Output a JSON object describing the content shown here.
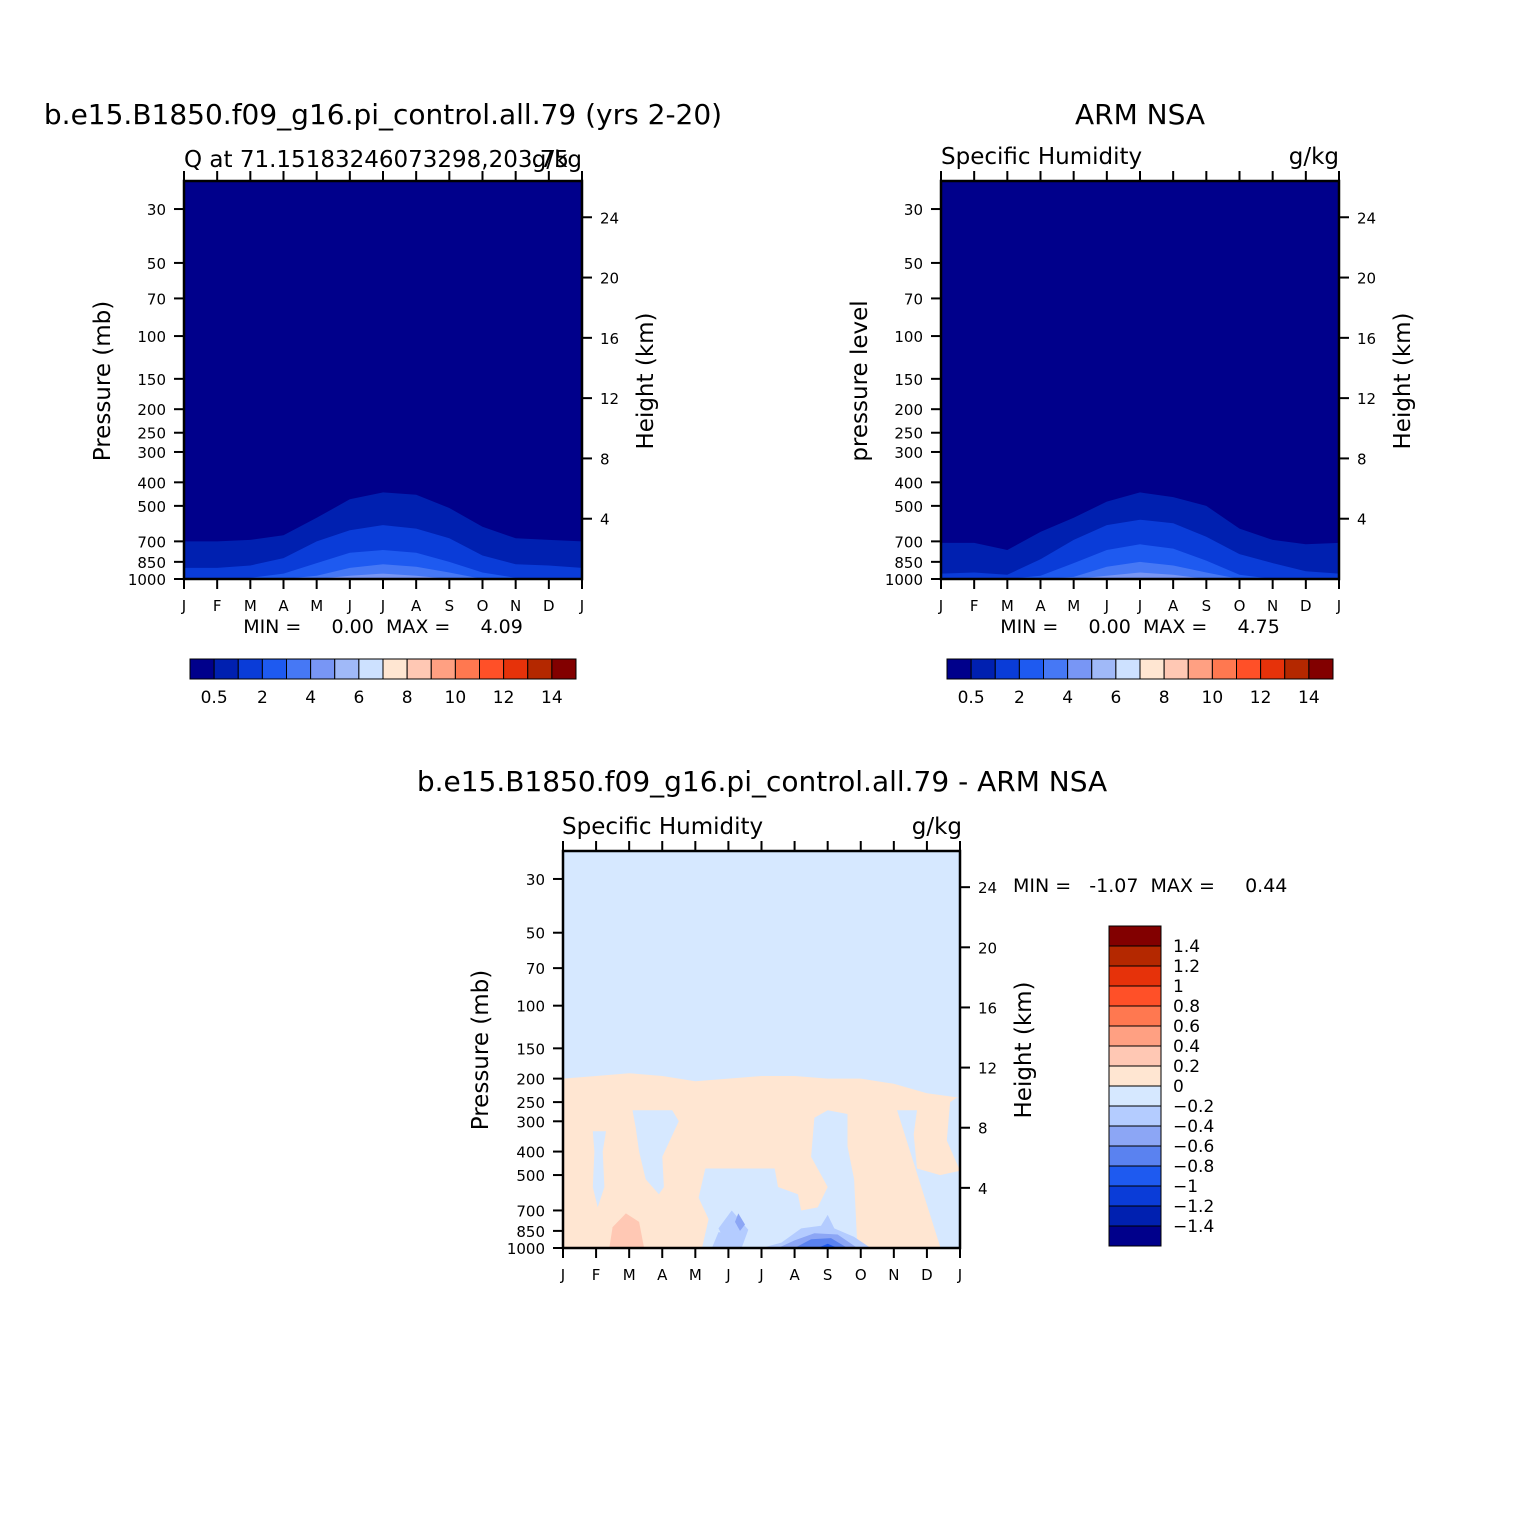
{
  "chart_data": [
    {
      "type": "heatmap",
      "main_title": "b.e15.B1850.f09_g16.pi_control.all.79 (yrs 2-20)",
      "left_subtitle": "Q at 71.15183246073298,203.75",
      "right_subtitle": "g/kg",
      "ylabel": "Pressure (mb)",
      "ylabel_right": "Height (km)",
      "x": [
        "J",
        "F",
        "M",
        "A",
        "M",
        "J",
        "J",
        "A",
        "S",
        "O",
        "N",
        "D",
        "J"
      ],
      "y_ticks": [
        "30",
        "50",
        "70",
        "100",
        "150",
        "200",
        "250",
        "300",
        "400",
        "500",
        "700",
        "850",
        "1000"
      ],
      "y_ticks_right": [
        "24",
        "20",
        "16",
        "12",
        "8",
        "4"
      ],
      "stats": "MIN =     0.00  MAX =     4.09",
      "colorbar_labels": [
        "0.5",
        "2",
        "4",
        "6",
        "8",
        "10",
        "12",
        "14"
      ],
      "contour_top_hpa": [
        [
          700,
          700,
          690,
          660,
          560,
          470,
          440,
          450,
          510,
          610,
          680,
          690,
          700
        ],
        [
          900,
          900,
          880,
          820,
          700,
          630,
          600,
          620,
          680,
          800,
          870,
          880,
          900
        ],
        [
          1000,
          1000,
          990,
          950,
          860,
          780,
          760,
          780,
          850,
          940,
          990,
          1000,
          1000
        ],
        [
          1000,
          1000,
          1000,
          1000,
          970,
          900,
          870,
          890,
          940,
          1000,
          1000,
          1000,
          1000
        ],
        [
          1000,
          1000,
          1000,
          1000,
          1000,
          970,
          950,
          970,
          1000,
          1000,
          1000,
          1000,
          1000
        ],
        [
          1000,
          1000,
          1000,
          1000,
          1000,
          1000,
          995,
          1000,
          1000,
          1000,
          1000,
          1000,
          1000
        ]
      ]
    },
    {
      "type": "heatmap",
      "main_title": "ARM NSA",
      "left_subtitle": "Specific Humidity",
      "right_subtitle": "g/kg",
      "ylabel": "pressure level",
      "ylabel_right": "Height (km)",
      "x": [
        "J",
        "F",
        "M",
        "A",
        "M",
        "J",
        "J",
        "A",
        "S",
        "O",
        "N",
        "D",
        "J"
      ],
      "y_ticks": [
        "30",
        "50",
        "70",
        "100",
        "150",
        "200",
        "250",
        "300",
        "400",
        "500",
        "700",
        "850",
        "1000"
      ],
      "y_ticks_right": [
        "24",
        "20",
        "16",
        "12",
        "8",
        "4"
      ],
      "stats": "MIN =     0.00  MAX =     4.75",
      "colorbar_labels": [
        "0.5",
        "2",
        "4",
        "6",
        "8",
        "10",
        "12",
        "14"
      ],
      "contour_top_hpa": [
        [
          710,
          710,
          760,
          640,
          560,
          480,
          440,
          460,
          500,
          620,
          690,
          720,
          710
        ],
        [
          950,
          940,
          960,
          830,
          690,
          600,
          570,
          590,
          670,
          790,
          860,
          930,
          950
        ],
        [
          1000,
          1000,
          1000,
          970,
          860,
          760,
          720,
          750,
          840,
          960,
          1000,
          1000,
          1000
        ],
        [
          1000,
          1000,
          1000,
          1000,
          980,
          890,
          850,
          880,
          940,
          1000,
          1000,
          1000,
          1000
        ],
        [
          1000,
          1000,
          1000,
          1000,
          1000,
          970,
          940,
          960,
          1000,
          1000,
          1000,
          1000,
          1000
        ],
        [
          1000,
          1000,
          1000,
          1000,
          1000,
          1000,
          990,
          1000,
          1000,
          1000,
          1000,
          1000,
          1000
        ]
      ]
    },
    {
      "type": "heatmap",
      "main_title": "b.e15.B1850.f09_g16.pi_control.all.79 - ARM NSA",
      "left_subtitle": "Specific Humidity",
      "right_subtitle": "g/kg",
      "ylabel": "Pressure (mb)",
      "ylabel_right": "Height (km)",
      "x": [
        "J",
        "F",
        "M",
        "A",
        "M",
        "J",
        "J",
        "A",
        "S",
        "O",
        "N",
        "D",
        "J"
      ],
      "y_ticks": [
        "30",
        "50",
        "70",
        "100",
        "150",
        "200",
        "250",
        "300",
        "400",
        "500",
        "700",
        "850",
        "1000"
      ],
      "y_ticks_right": [
        "24",
        "20",
        "16",
        "12",
        "8",
        "4"
      ],
      "stats": "MIN =   -1.07  MAX =     0.44",
      "colorbar_labels": [
        "1.4",
        "1.2",
        "1",
        "0.8",
        "0.6",
        "0.4",
        "0.2",
        "0",
        "-0.2",
        "-0.4",
        "-0.6",
        "-0.8",
        "-1",
        "-1.2",
        "-1.4"
      ],
      "positive_band_top_hpa": [
        200,
        195,
        190,
        195,
        205,
        200,
        195,
        195,
        200,
        200,
        210,
        230,
        240
      ]
    }
  ],
  "colors": {
    "abs_scale": [
      "#00008B",
      "#0020B0",
      "#0A3CD8",
      "#1E5AF0",
      "#4678F5",
      "#7896F5",
      "#A0B9F8",
      "#CDE1FF",
      "#FFE6D2",
      "#FFC8B4",
      "#FFA082",
      "#FF7850",
      "#FF5028",
      "#E6320A",
      "#B42800",
      "#820000"
    ],
    "anom_scale": [
      "#820000",
      "#B42800",
      "#E6320A",
      "#FF5028",
      "#FF7850",
      "#FFA082",
      "#FFC8B4",
      "#FFE6D2",
      "#D6E8FF",
      "#B4CCFF",
      "#8CA6F5",
      "#5A82F0",
      "#1E5AF0",
      "#0A3CD8",
      "#0020B0",
      "#00008B"
    ]
  }
}
